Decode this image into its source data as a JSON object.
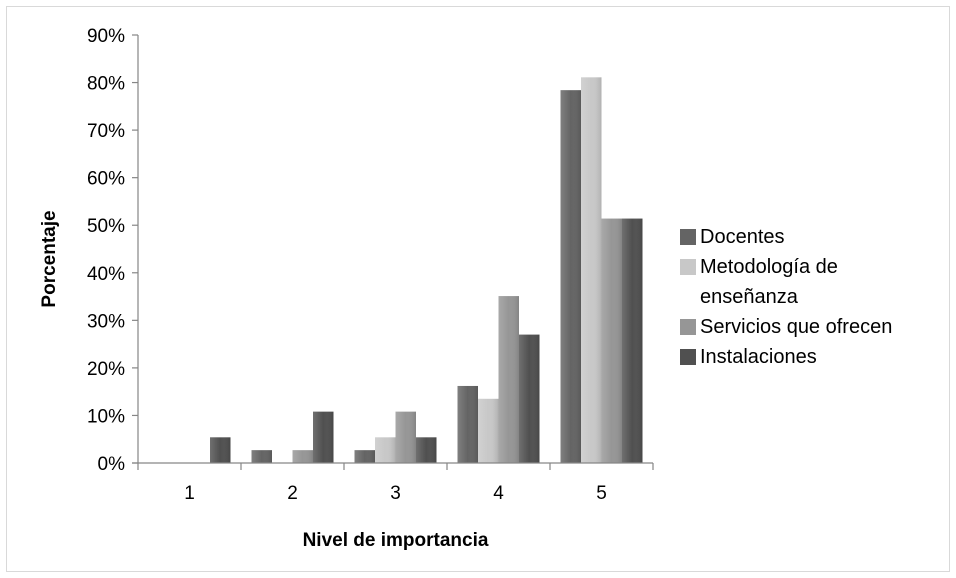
{
  "chart_data": {
    "type": "bar",
    "categories": [
      "1",
      "2",
      "3",
      "4",
      "5"
    ],
    "series": [
      {
        "name": "Docentes",
        "values": [
          0,
          2.7,
          2.7,
          16.2,
          78.4
        ],
        "color": "#646464"
      },
      {
        "name": "Metodología de enseñanza",
        "values": [
          0,
          0,
          5.4,
          13.5,
          81.1
        ],
        "color": "#c8c8c8"
      },
      {
        "name": "Servicios que ofrecen",
        "values": [
          0,
          2.7,
          10.8,
          35.1,
          51.4
        ],
        "color": "#969696"
      },
      {
        "name": "Instalaciones",
        "values": [
          5.4,
          10.8,
          5.4,
          27.0,
          51.4
        ],
        "color": "#505050"
      }
    ],
    "legend_lines": [
      [
        "Docentes"
      ],
      [
        "Metodología de",
        "enseñanza"
      ],
      [
        "Servicios que ofrecen"
      ],
      [
        "Instalaciones"
      ]
    ],
    "yticks": [
      "0%",
      "10%",
      "20%",
      "30%",
      "40%",
      "50%",
      "60%",
      "70%",
      "80%",
      "90%"
    ],
    "title": "",
    "xlabel": "Nivel de importancia",
    "ylabel": "Porcentaje",
    "ylim": [
      0,
      90
    ],
    "grid": false,
    "legend_position": "right"
  }
}
